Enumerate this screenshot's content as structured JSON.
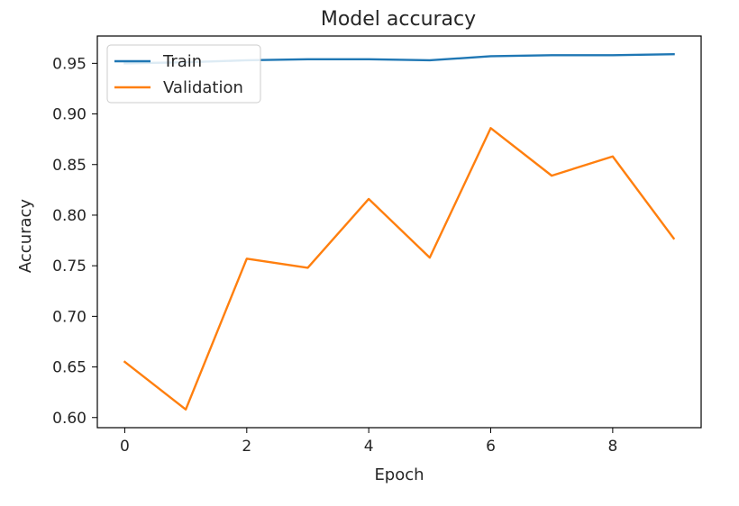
{
  "chart_data": {
    "type": "line",
    "title": "Model accuracy",
    "xlabel": "Epoch",
    "ylabel": "Accuracy",
    "x": [
      0,
      1,
      2,
      3,
      4,
      5,
      6,
      7,
      8,
      9
    ],
    "xlim": [
      -0.45,
      9.45
    ],
    "ylim": [
      0.59,
      0.977
    ],
    "xticks": [
      0,
      2,
      4,
      6,
      8
    ],
    "xtick_labels": [
      "0",
      "2",
      "4",
      "6",
      "8"
    ],
    "yticks": [
      0.6,
      0.65,
      0.7,
      0.75,
      0.8,
      0.85,
      0.9,
      0.95
    ],
    "ytick_labels": [
      "0.60",
      "0.65",
      "0.70",
      "0.75",
      "0.80",
      "0.85",
      "0.90",
      "0.95"
    ],
    "grid": false,
    "legend_position": "top-left",
    "series": [
      {
        "name": "Train",
        "color": "#1f77b4",
        "values": [
          0.95,
          0.951,
          0.953,
          0.954,
          0.954,
          0.953,
          0.957,
          0.958,
          0.958,
          0.959
        ]
      },
      {
        "name": "Validation",
        "color": "#ff7f0e",
        "values": [
          0.655,
          0.608,
          0.757,
          0.748,
          0.816,
          0.758,
          0.886,
          0.839,
          0.858,
          0.777
        ]
      }
    ]
  }
}
